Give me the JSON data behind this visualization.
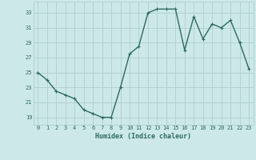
{
  "x": [
    0,
    1,
    2,
    3,
    4,
    5,
    6,
    7,
    8,
    9,
    10,
    11,
    12,
    13,
    14,
    15,
    16,
    17,
    18,
    19,
    20,
    21,
    22,
    23
  ],
  "y": [
    25,
    24,
    22.5,
    22,
    21.5,
    20,
    19.5,
    19,
    19,
    23,
    27.5,
    28.5,
    33,
    33.5,
    33.5,
    33.5,
    28,
    32.5,
    29.5,
    31.5,
    31,
    32,
    29,
    25.5
  ],
  "line_color": "#2e6b5e",
  "marker": "+",
  "marker_color": "#2e6b5e",
  "bg_color": "#cce8e8",
  "grid_color": "#b0cfcf",
  "xlabel": "Humidex (Indice chaleur)",
  "xlim": [
    -0.5,
    23.5
  ],
  "ylim": [
    18.0,
    34.5
  ],
  "yticks": [
    19,
    21,
    23,
    25,
    27,
    29,
    31,
    33
  ],
  "xticks": [
    0,
    1,
    2,
    3,
    4,
    5,
    6,
    7,
    8,
    9,
    10,
    11,
    12,
    13,
    14,
    15,
    16,
    17,
    18,
    19,
    20,
    21,
    22,
    23
  ],
  "tick_color": "#2e6b5e",
  "label_color": "#2e6b5e",
  "linewidth": 1.0,
  "markersize": 3.5,
  "tick_fontsize": 5.0,
  "xlabel_fontsize": 6.0
}
